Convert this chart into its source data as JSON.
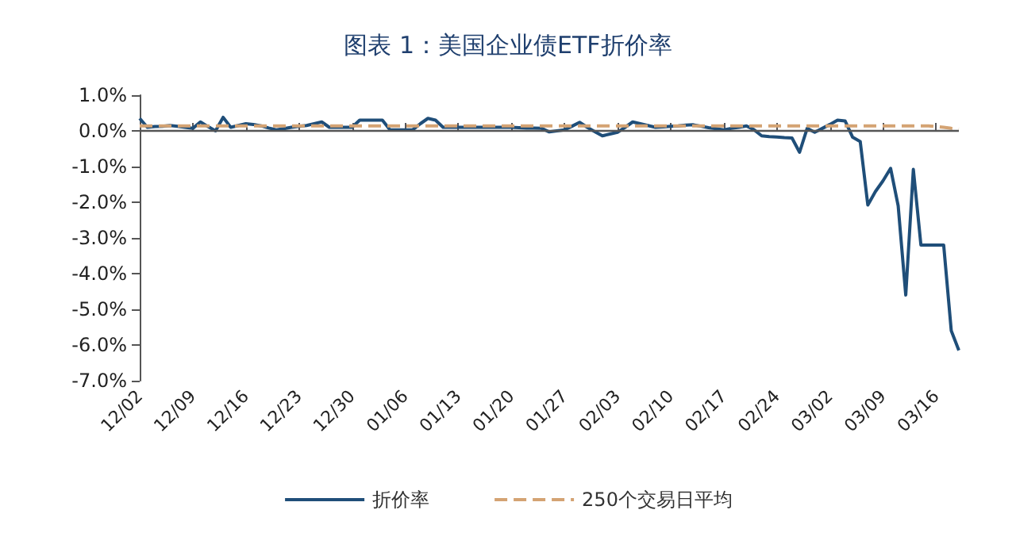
{
  "chart_data": {
    "type": "line",
    "title": "图表 1：美国企业债ETF折价率",
    "categories": [
      "12/02",
      null,
      null,
      null,
      null,
      null,
      null,
      "12/09",
      null,
      null,
      null,
      null,
      null,
      null,
      "12/16",
      null,
      null,
      null,
      null,
      null,
      null,
      "12/23",
      null,
      null,
      null,
      null,
      null,
      null,
      "12/30",
      null,
      null,
      null,
      null,
      null,
      null,
      "01/06",
      null,
      null,
      null,
      null,
      null,
      null,
      "01/13",
      null,
      null,
      null,
      null,
      null,
      null,
      "01/20",
      null,
      null,
      null,
      null,
      null,
      null,
      "01/27",
      null,
      null,
      null,
      null,
      null,
      null,
      "02/03",
      null,
      null,
      null,
      null,
      null,
      null,
      "02/10",
      null,
      null,
      null,
      null,
      null,
      null,
      "02/17",
      null,
      null,
      null,
      null,
      null,
      null,
      "02/24",
      null,
      null,
      null,
      null,
      null,
      null,
      "03/02",
      null,
      null,
      null,
      null,
      null,
      null,
      "03/09",
      null,
      null,
      null,
      null,
      null,
      null,
      "03/16",
      null,
      null,
      null
    ],
    "series": [
      {
        "name": "折价率",
        "color": "#1f4e79",
        "line_style": "solid",
        "values": [
          0.35,
          0.1,
          0.12,
          0.13,
          0.15,
          0.13,
          0.1,
          0.07,
          0.25,
          0.12,
          0.0,
          0.38,
          0.1,
          0.15,
          0.2,
          0.18,
          0.14,
          0.08,
          0.03,
          0.06,
          0.1,
          0.13,
          0.15,
          0.2,
          0.25,
          0.1,
          0.1,
          0.1,
          0.1,
          0.3,
          0.3,
          0.3,
          0.3,
          0.03,
          0.03,
          0.03,
          0.03,
          0.2,
          0.35,
          0.3,
          0.1,
          0.1,
          0.1,
          0.1,
          0.1,
          0.1,
          0.1,
          0.1,
          0.1,
          0.1,
          0.09,
          0.08,
          0.08,
          0.07,
          -0.03,
          0.0,
          0.03,
          0.13,
          0.24,
          0.1,
          -0.02,
          -0.14,
          -0.09,
          -0.04,
          0.1,
          0.25,
          0.2,
          0.15,
          0.1,
          0.11,
          0.13,
          0.14,
          0.16,
          0.17,
          0.13,
          0.09,
          0.06,
          0.03,
          0.07,
          0.1,
          0.14,
          0.03,
          -0.14,
          -0.16,
          -0.17,
          -0.19,
          -0.2,
          -0.6,
          0.07,
          -0.04,
          0.07,
          0.18,
          0.3,
          0.28,
          -0.18,
          -0.3,
          -2.08,
          -1.7,
          -1.4,
          -1.05,
          -2.1,
          -4.6,
          -1.08,
          -3.2,
          -3.2,
          -3.2,
          -3.2,
          -5.6,
          -6.15
        ]
      },
      {
        "name": "250个交易日平均",
        "color": "#d4a373",
        "line_style": "dashed",
        "values": [
          0.14,
          0.14,
          0.14,
          0.14,
          0.14,
          0.14,
          0.14,
          0.14,
          0.14,
          0.14,
          0.14,
          0.14,
          0.14,
          0.14,
          0.14,
          0.14,
          0.14,
          0.14,
          0.14,
          0.14,
          0.14,
          0.14,
          0.14,
          0.14,
          0.14,
          0.14,
          0.14,
          0.14,
          0.14,
          0.14,
          0.14,
          0.14,
          0.14,
          0.14,
          0.14,
          0.14,
          0.14,
          0.14,
          0.14,
          0.14,
          0.14,
          0.14,
          0.14,
          0.14,
          0.14,
          0.14,
          0.14,
          0.14,
          0.14,
          0.14,
          0.14,
          0.14,
          0.14,
          0.14,
          0.14,
          0.14,
          0.14,
          0.14,
          0.14,
          0.14,
          0.14,
          0.14,
          0.14,
          0.14,
          0.14,
          0.14,
          0.14,
          0.14,
          0.14,
          0.14,
          0.14,
          0.14,
          0.14,
          0.14,
          0.14,
          0.14,
          0.14,
          0.14,
          0.14,
          0.14,
          0.14,
          0.14,
          0.14,
          0.14,
          0.14,
          0.14,
          0.14,
          0.14,
          0.14,
          0.14,
          0.14,
          0.14,
          0.14,
          0.14,
          0.14,
          0.14,
          0.14,
          0.14,
          0.14,
          0.14,
          0.14,
          0.14,
          0.14,
          0.14,
          0.14,
          0.12,
          0.1,
          0.07,
          0.05
        ]
      }
    ],
    "ylim": [
      -7,
      1
    ],
    "yticks": [
      {
        "value": -7,
        "label": "-7.0%"
      },
      {
        "value": -6,
        "label": "-6.0%"
      },
      {
        "value": -5,
        "label": "-5.0%"
      },
      {
        "value": -4,
        "label": "-4.0%"
      },
      {
        "value": -3,
        "label": "-3.0%"
      },
      {
        "value": -2,
        "label": "-2.0%"
      },
      {
        "value": -1,
        "label": "-1.0%"
      },
      {
        "value": 0,
        "label": "0.0%"
      },
      {
        "value": 1,
        "label": "1.0%"
      }
    ],
    "ref_lines": [
      {
        "axis": "y",
        "value": 0,
        "color": "#555555",
        "line_style": "solid"
      }
    ],
    "grid": false,
    "legend": "bottom",
    "marker": "none"
  }
}
